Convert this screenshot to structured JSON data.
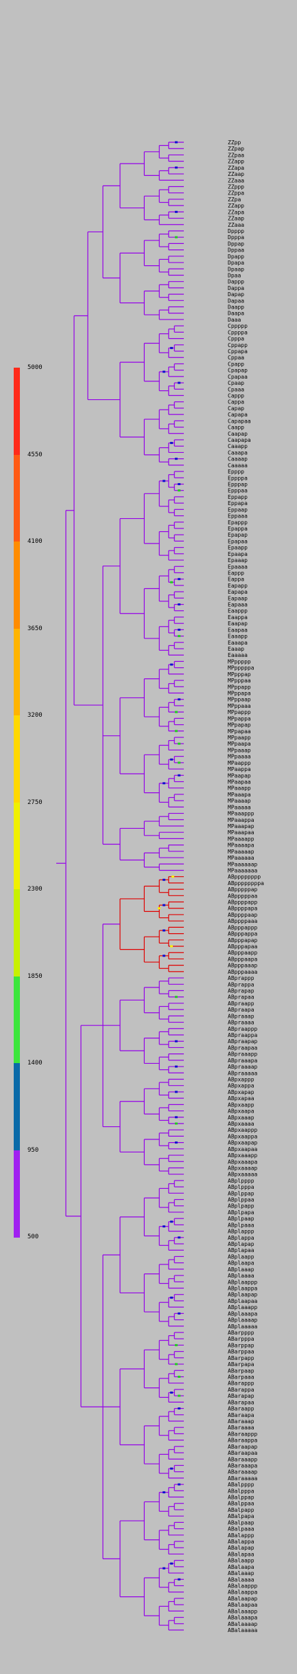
{
  "legend": {
    "ticks": [
      "5000",
      "4550",
      "4100",
      "3650",
      "3200",
      "2750",
      "2300",
      "1850",
      "1400",
      "950",
      "500"
    ],
    "bands": [
      {
        "from": 4550,
        "to": 5000,
        "color": "#ff2a1a"
      },
      {
        "from": 4100,
        "to": 4550,
        "color": "#ff5a14"
      },
      {
        "from": 3650,
        "to": 4100,
        "color": "#ff8c00"
      },
      {
        "from": 3200,
        "to": 3650,
        "color": "#ffb400"
      },
      {
        "from": 2750,
        "to": 3200,
        "color": "#ffd800"
      },
      {
        "from": 2300,
        "to": 2750,
        "color": "#f0f000"
      },
      {
        "from": 1850,
        "to": 2300,
        "color": "#c8f000"
      },
      {
        "from": 1400,
        "to": 1850,
        "color": "#3ce63c"
      },
      {
        "from": 950,
        "to": 1400,
        "color": "#0a6aa8"
      },
      {
        "from": 500,
        "to": 950,
        "color": "#a020f0"
      }
    ]
  },
  "colors": {
    "branch": "#9400e8",
    "hot_branch": "#e00000",
    "marker_blue": "#1010d0",
    "marker_green": "#22cc22",
    "marker_yellow": "#ffee00"
  },
  "groups": [
    {
      "labels": [
        "ZZpp",
        "ZZpap",
        "ZZpaa",
        "ZZapp",
        "ZZapa",
        "ZZaap",
        "ZZaaa",
        "ZZppp",
        "ZZppa",
        "ZZpa",
        "ZZapp",
        "ZZapa",
        "ZZaap",
        "ZZaaa"
      ]
    },
    {
      "labels": [
        "Dpppp",
        "Dpppa",
        "Dppap",
        "Dppaa",
        "Dpapp",
        "Dpapa",
        "Dpaap",
        "Dpaa",
        "Dappp",
        "Dappa",
        "Dapap",
        "Dapaa",
        "Daapp",
        "Daapa",
        "Daaa"
      ]
    },
    {
      "labels": [
        "Cppppp",
        "Cppppa",
        "Cpppa",
        "Cppapp",
        "Cppapa",
        "Cppaa",
        "Cpapp",
        "Cpapap",
        "Cpapaa",
        "Cpaap",
        "Cpaaa",
        "Cappp",
        "Cappa",
        "Capap",
        "Capapa",
        "Capapaa",
        "Caapp",
        "Caapap",
        "Caapapa",
        "Caaapp",
        "Caaapa",
        "Caaaap",
        "Caaaaa"
      ]
    },
    {
      "labels": [
        "Epppp",
        "Eppppa",
        "Epppap",
        "Epppaa",
        "Eppapp",
        "Eppapa",
        "Eppaap",
        "Eppaaa",
        "Epappp",
        "Epappa",
        "Epapap",
        "Epapaa",
        "Epaapp",
        "Epaapa",
        "Epaaap",
        "Epaaaa",
        "Eappp",
        "Eappa",
        "Eapapp",
        "Eapapa",
        "Eapaap",
        "Eapaaa",
        "Eaappp",
        "Eaappa",
        "Eaapap",
        "Eaapaa",
        "Eaaapp",
        "Eaaapa",
        "Eaaap",
        "Eaaaaa"
      ]
    },
    {
      "labels": [
        "MPppppp",
        "MPpppppa",
        "MPpppap",
        "MPpppaa",
        "MPppapp",
        "MPppapa",
        "MPppaap",
        "MPppaaa",
        "MPpappp",
        "MPpappa",
        "MPpapap",
        "MPpapaa",
        "MPpaapp",
        "MPpaapa",
        "MPpaaap",
        "MPpaaaa",
        "MPaappp",
        "MPaappa",
        "MPaapap",
        "MPaapaa",
        "MPaaapp",
        "MPaaapa",
        "MPaaaap",
        "MPaaaaa"
      ]
    },
    {
      "labels": [
        "MPaaappp",
        "MPaaappa",
        "MPaaapap",
        "MPaaapaa",
        "MPaaaapp",
        "MPaaaapa",
        "MPaaaaap",
        "MPaaaaaa",
        "MPaaaaaap",
        "MPaaaaaaa"
      ]
    },
    {
      "labels": [
        "ABpppppppp",
        "ABppppppppa",
        "ABpppppap",
        "ABpppppaa",
        "ABppppapp",
        "ABppppapa",
        "ABppppaap",
        "ABppppaaa",
        "ABpppappp",
        "ABpppappa",
        "ABpppapap",
        "ABpppapaa",
        "ABpppaapp",
        "ABpppaapa",
        "ABpppaaap",
        "ABpppaaaa"
      ]
    },
    {
      "labels": [
        "ABprappp",
        "ABprappa",
        "ABprapap",
        "ABprapaa",
        "ABpraapp",
        "ABpraapa",
        "ABpraaap",
        "ABpraaaa",
        "ABpraappp",
        "ABpraappa",
        "ABpraapap",
        "ABpraapaa",
        "ABpraaapp",
        "ABpraaapa",
        "ABpraaaap",
        "ABpraaaaa"
      ]
    },
    {
      "labels": [
        "ABpxappp",
        "ABpxappa",
        "ABpxapap",
        "ABpxapaa",
        "ABpxaapp",
        "ABpxaapa",
        "ABpxaaap",
        "ABpxaaaa",
        "ABpxaappp",
        "ABpxaappa",
        "ABpxaapap",
        "ABpxaapaa",
        "ABpxaaapp",
        "ABpxaaapa",
        "ABpxaaaap",
        "ABpxaaaaa"
      ]
    },
    {
      "labels": [
        "ABplpppp",
        "ABplpppa",
        "ABplppap",
        "ABplppaa",
        "ABplpapp",
        "ABplpapa",
        "ABplpaap",
        "ABplpaaa",
        "ABplappp",
        "ABplappa",
        "ABplapap",
        "ABplapaa",
        "ABplaapp",
        "ABplaapa",
        "ABplaaap",
        "ABplaaaa",
        "ABplaappp",
        "ABplaappa",
        "ABplaapap",
        "ABplaapaa",
        "ABplaaapp",
        "ABplaaapa",
        "ABplaaaap",
        "ABplaaaaa"
      ]
    },
    {
      "labels": [
        "ABarpppp",
        "ABarpppa",
        "ABarppap",
        "ABarppaa",
        "ABarpapp",
        "ABarpapa",
        "ABarpaap",
        "ABarpaaa",
        "ABarappp",
        "ABarappa",
        "ABarapap",
        "ABarapaa",
        "ABaraapp",
        "ABaraapa",
        "ABaraaap",
        "ABaraaaa",
        "ABaraappp",
        "ABaraappa",
        "ABaraapap",
        "ABaraapaa",
        "ABaraaapp",
        "ABaraaapa",
        "ABaraaaap",
        "ABaraaaaa"
      ]
    },
    {
      "labels": [
        "ABalpppp",
        "ABalpppa",
        "ABalppap",
        "ABalppaa",
        "ABalpapp",
        "ABalpapa",
        "ABalpaap",
        "ABalpaaa",
        "ABalappp",
        "ABalappa",
        "ABalapap",
        "ABalapaa",
        "ABalaapp",
        "ABalaapa",
        "ABalaaap",
        "ABalaaaa",
        "ABalaappp",
        "ABalaappa",
        "ABalaapap",
        "ABalaapaa",
        "ABalaaapp",
        "ABalaaapa",
        "ABalaaaap",
        "ABalaaaaa"
      ]
    }
  ]
}
